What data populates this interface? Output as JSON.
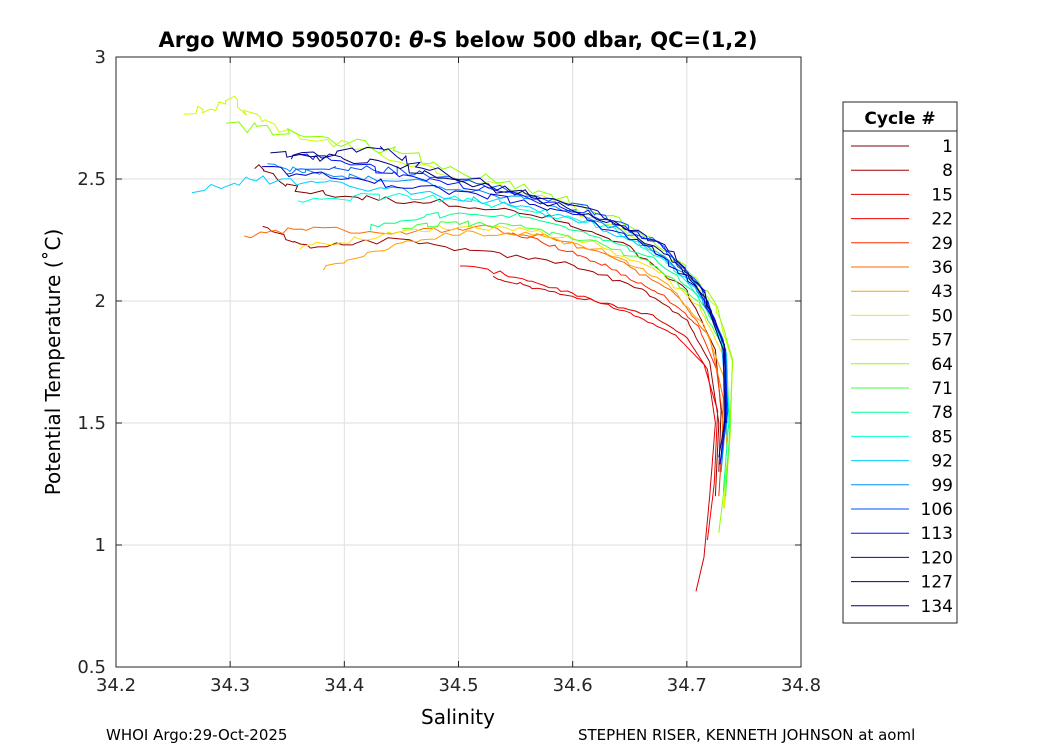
{
  "chart_data": {
    "type": "line",
    "title_prefix": "Argo WMO 5905070: ",
    "title_theta": "θ",
    "title_suffix": "-S below 500 dbar,  QC=(1,2)",
    "xlabel": "Salinity",
    "ylabel": "Potential Temperature (˚C)",
    "xlim": [
      34.2,
      34.8
    ],
    "ylim": [
      0.5,
      3
    ],
    "xticks": [
      34.2,
      34.3,
      34.4,
      34.5,
      34.6,
      34.7,
      34.8
    ],
    "xtick_labels": [
      "34.2",
      "34.3",
      "34.4",
      "34.5",
      "34.6",
      "34.7",
      "34.8"
    ],
    "yticks": [
      0.5,
      1,
      1.5,
      2,
      2.5,
      3
    ],
    "ytick_labels": [
      "0.5",
      "1",
      "1.5",
      "2",
      "2.5",
      "3"
    ],
    "grid": true,
    "legend_title": "Cycle #",
    "legend_position": "right",
    "series": [
      {
        "name": "1",
        "color": "#7f0000",
        "values": [
          [
            34.32,
            2.55
          ],
          [
            34.36,
            2.45
          ],
          [
            34.42,
            2.42
          ],
          [
            34.5,
            2.4
          ],
          [
            34.58,
            2.34
          ],
          [
            34.65,
            2.22
          ],
          [
            34.7,
            2.04
          ],
          [
            34.725,
            1.8
          ],
          [
            34.73,
            1.55
          ],
          [
            34.728,
            1.3
          ]
        ]
      },
      {
        "name": "8",
        "color": "#a00000",
        "values": [
          [
            34.33,
            2.3
          ],
          [
            34.37,
            2.22
          ],
          [
            34.44,
            2.25
          ],
          [
            34.52,
            2.2
          ],
          [
            34.6,
            2.15
          ],
          [
            34.66,
            2.05
          ],
          [
            34.7,
            1.92
          ],
          [
            34.72,
            1.75
          ],
          [
            34.728,
            1.5
          ],
          [
            34.725,
            1.2
          ]
        ]
      },
      {
        "name": "15",
        "color": "#d40000",
        "values": [
          [
            34.53,
            2.1
          ],
          [
            34.57,
            2.05
          ],
          [
            34.62,
            2.0
          ],
          [
            34.67,
            1.94
          ],
          [
            34.7,
            1.85
          ],
          [
            34.718,
            1.72
          ],
          [
            34.725,
            1.5
          ],
          [
            34.72,
            1.2
          ],
          [
            34.715,
            0.95
          ],
          [
            34.708,
            0.81
          ]
        ]
      },
      {
        "name": "22",
        "color": "#f00000",
        "values": [
          [
            34.5,
            2.15
          ],
          [
            34.55,
            2.1
          ],
          [
            34.6,
            2.03
          ],
          [
            34.65,
            1.95
          ],
          [
            34.69,
            1.86
          ],
          [
            34.715,
            1.74
          ],
          [
            34.727,
            1.55
          ],
          [
            34.724,
            1.25
          ],
          [
            34.718,
            1.02
          ]
        ]
      },
      {
        "name": "29",
        "color": "#ff3000",
        "values": [
          [
            34.55,
            2.28
          ],
          [
            34.6,
            2.2
          ],
          [
            34.64,
            2.12
          ],
          [
            34.68,
            2.02
          ],
          [
            34.71,
            1.9
          ],
          [
            34.726,
            1.72
          ],
          [
            34.732,
            1.5
          ],
          [
            34.728,
            1.2
          ]
        ]
      },
      {
        "name": "36",
        "color": "#ff6a00",
        "values": [
          [
            34.31,
            2.26
          ],
          [
            34.36,
            2.3
          ],
          [
            34.44,
            2.28
          ],
          [
            34.52,
            2.3
          ],
          [
            34.58,
            2.26
          ],
          [
            34.64,
            2.17
          ],
          [
            34.69,
            2.03
          ],
          [
            34.72,
            1.85
          ],
          [
            34.732,
            1.6
          ],
          [
            34.73,
            1.3
          ]
        ]
      },
      {
        "name": "43",
        "color": "#ffa000",
        "values": [
          [
            34.38,
            2.13
          ],
          [
            34.44,
            2.22
          ],
          [
            34.5,
            2.28
          ],
          [
            34.57,
            2.27
          ],
          [
            34.63,
            2.2
          ],
          [
            34.68,
            2.08
          ],
          [
            34.715,
            1.9
          ],
          [
            34.733,
            1.68
          ],
          [
            34.735,
            1.4
          ]
        ]
      },
      {
        "name": "50",
        "color": "#ffe000",
        "values": [
          [
            34.36,
            2.22
          ],
          [
            34.42,
            2.26
          ],
          [
            34.48,
            2.3
          ],
          [
            34.55,
            2.3
          ],
          [
            34.61,
            2.25
          ],
          [
            34.67,
            2.14
          ],
          [
            34.71,
            1.98
          ],
          [
            34.735,
            1.75
          ],
          [
            34.738,
            1.45
          ],
          [
            34.733,
            1.15
          ]
        ]
      },
      {
        "name": "57",
        "color": "#c8ff00",
        "values": [
          [
            34.26,
            2.78
          ],
          [
            34.3,
            2.82
          ],
          [
            34.34,
            2.7
          ],
          [
            34.42,
            2.62
          ],
          [
            34.5,
            2.5
          ],
          [
            34.58,
            2.42
          ],
          [
            34.64,
            2.3
          ],
          [
            34.69,
            2.16
          ],
          [
            34.725,
            1.98
          ],
          [
            34.74,
            1.75
          ],
          [
            34.738,
            1.45
          ],
          [
            34.732,
            1.15
          ]
        ]
      },
      {
        "name": "64",
        "color": "#88ff00",
        "values": [
          [
            34.3,
            2.72
          ],
          [
            34.36,
            2.68
          ],
          [
            34.44,
            2.62
          ],
          [
            34.51,
            2.52
          ],
          [
            34.58,
            2.44
          ],
          [
            34.64,
            2.33
          ],
          [
            34.69,
            2.18
          ],
          [
            34.725,
            2.0
          ],
          [
            34.74,
            1.76
          ],
          [
            34.737,
            1.4
          ],
          [
            34.728,
            1.05
          ]
        ]
      },
      {
        "name": "71",
        "color": "#40ff40",
        "values": [
          [
            34.45,
            2.3
          ],
          [
            34.5,
            2.32
          ],
          [
            34.56,
            2.3
          ],
          [
            34.62,
            2.24
          ],
          [
            34.67,
            2.15
          ],
          [
            34.71,
            2.0
          ],
          [
            34.733,
            1.8
          ],
          [
            34.738,
            1.5
          ],
          [
            34.734,
            1.2
          ]
        ]
      },
      {
        "name": "78",
        "color": "#00ff90",
        "values": [
          [
            34.42,
            2.3
          ],
          [
            34.48,
            2.35
          ],
          [
            34.55,
            2.35
          ],
          [
            34.61,
            2.29
          ],
          [
            34.67,
            2.18
          ],
          [
            34.71,
            2.02
          ],
          [
            34.733,
            1.82
          ],
          [
            34.737,
            1.52
          ],
          [
            34.732,
            1.22
          ]
        ]
      },
      {
        "name": "85",
        "color": "#00ffd0",
        "values": [
          [
            34.36,
            2.4
          ],
          [
            34.42,
            2.43
          ],
          [
            34.49,
            2.42
          ],
          [
            34.56,
            2.38
          ],
          [
            34.63,
            2.3
          ],
          [
            34.68,
            2.17
          ],
          [
            34.715,
            2.0
          ],
          [
            34.735,
            1.78
          ],
          [
            34.737,
            1.48
          ]
        ]
      },
      {
        "name": "92",
        "color": "#00d0ff",
        "values": [
          [
            34.27,
            2.46
          ],
          [
            34.32,
            2.5
          ],
          [
            34.38,
            2.48
          ],
          [
            34.46,
            2.45
          ],
          [
            34.54,
            2.4
          ],
          [
            34.62,
            2.31
          ],
          [
            34.68,
            2.18
          ],
          [
            34.718,
            2.0
          ],
          [
            34.735,
            1.75
          ],
          [
            34.735,
            1.45
          ]
        ]
      },
      {
        "name": "99",
        "color": "#0090ff",
        "values": [
          [
            34.33,
            2.55
          ],
          [
            34.38,
            2.52
          ],
          [
            34.45,
            2.5
          ],
          [
            34.52,
            2.45
          ],
          [
            34.6,
            2.37
          ],
          [
            34.66,
            2.25
          ],
          [
            34.705,
            2.08
          ],
          [
            34.73,
            1.85
          ],
          [
            34.735,
            1.55
          ],
          [
            34.73,
            1.3
          ]
        ]
      },
      {
        "name": "106",
        "color": "#0050ff",
        "values": [
          [
            34.35,
            2.52
          ],
          [
            34.4,
            2.55
          ],
          [
            34.46,
            2.53
          ],
          [
            34.53,
            2.47
          ],
          [
            34.61,
            2.38
          ],
          [
            34.67,
            2.25
          ],
          [
            34.71,
            2.07
          ],
          [
            34.732,
            1.84
          ],
          [
            34.736,
            1.55
          ],
          [
            34.73,
            1.35
          ]
        ]
      },
      {
        "name": "113",
        "color": "#0010ff",
        "values": [
          [
            34.36,
            2.6
          ],
          [
            34.42,
            2.55
          ],
          [
            34.48,
            2.5
          ],
          [
            34.55,
            2.44
          ],
          [
            34.62,
            2.35
          ],
          [
            34.68,
            2.22
          ],
          [
            34.715,
            2.04
          ],
          [
            34.734,
            1.8
          ],
          [
            34.735,
            1.5
          ]
        ]
      },
      {
        "name": "120",
        "color": "#0000d0",
        "values": [
          [
            34.33,
            2.54
          ],
          [
            34.4,
            2.5
          ],
          [
            34.46,
            2.47
          ],
          [
            34.54,
            2.42
          ],
          [
            34.61,
            2.34
          ],
          [
            34.67,
            2.22
          ],
          [
            34.71,
            2.05
          ],
          [
            34.733,
            1.82
          ],
          [
            34.734,
            1.52
          ],
          [
            34.729,
            1.33
          ]
        ]
      },
      {
        "name": "127",
        "color": "#000098",
        "values": [
          [
            34.35,
            2.58
          ],
          [
            34.43,
            2.63
          ],
          [
            34.47,
            2.55
          ],
          [
            34.55,
            2.45
          ],
          [
            34.62,
            2.36
          ],
          [
            34.68,
            2.23
          ],
          [
            34.713,
            2.05
          ],
          [
            34.733,
            1.82
          ],
          [
            34.734,
            1.5
          ]
        ]
      },
      {
        "name": "134",
        "color": "#000070",
        "values": [
          [
            34.34,
            2.6
          ],
          [
            34.41,
            2.58
          ],
          [
            34.48,
            2.52
          ],
          [
            34.56,
            2.43
          ],
          [
            34.63,
            2.33
          ],
          [
            34.68,
            2.2
          ],
          [
            34.714,
            2.03
          ],
          [
            34.732,
            1.8
          ],
          [
            34.733,
            1.5
          ],
          [
            34.728,
            1.36
          ]
        ]
      }
    ]
  },
  "footer": {
    "left": "WHOI Argo:29-Oct-2025",
    "right": "STEPHEN RISER, KENNETH JOHNSON at aoml"
  }
}
